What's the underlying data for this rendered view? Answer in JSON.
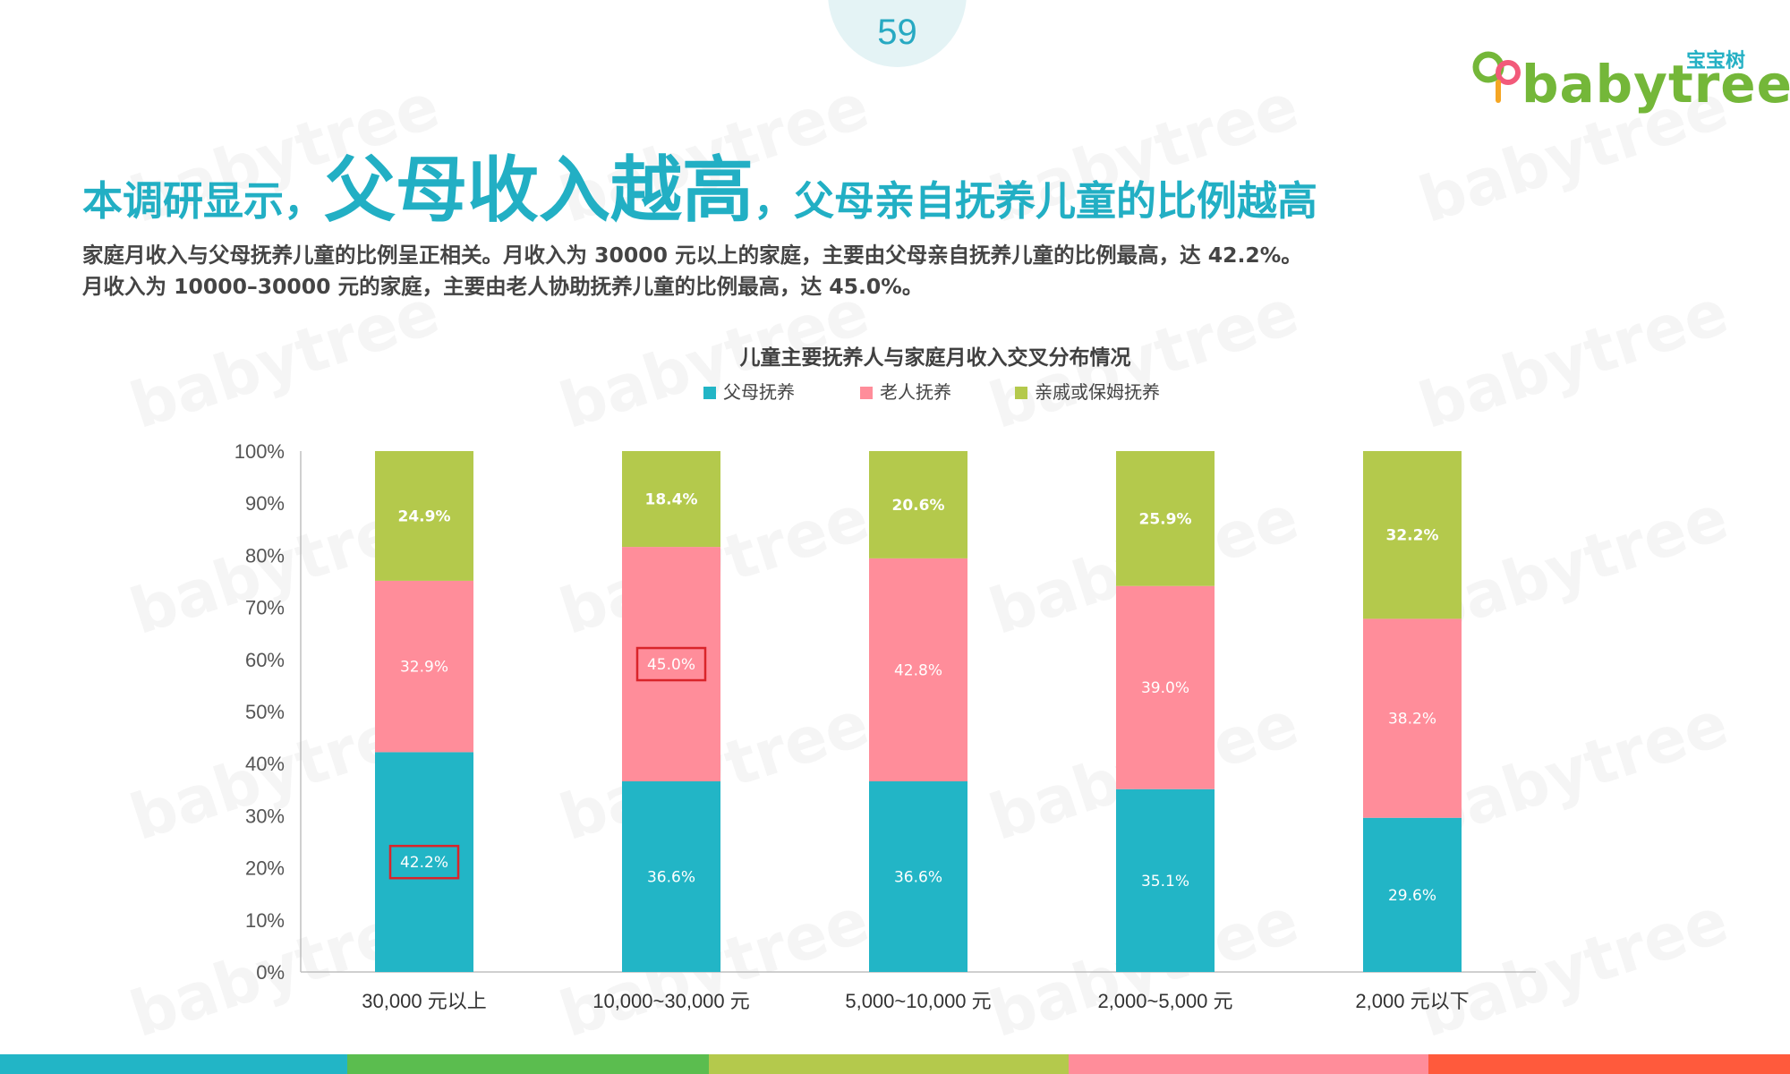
{
  "page": {
    "number": "59"
  },
  "logo": {
    "cn": "宝宝树",
    "en": "babytree"
  },
  "headline": {
    "part1": "本调研显示，",
    "part2": "父母收入越高",
    "part3": "，父母亲自抚养儿童的比例越高"
  },
  "description": "家庭月收入与父母抚养儿童的比例呈正相关。月收入为 30000 元以上的家庭，主要由父母亲自抚养儿童的比例最高，达 42.2%。月收入为 10000–30000 元的家庭，主要由老人协助抚养儿童的比例最高，达 45.0%。",
  "watermark_text": "babytree",
  "colors": {
    "teal": "#22b5c6",
    "pink": "#ff8d9a",
    "green": "#b4c94c",
    "highlight": "#d9242a",
    "title": "#22afc4"
  },
  "stripes": [
    "#22b5c6",
    "#5bbd4f",
    "#b4c94c",
    "#ff8d9a",
    "#ff5a3c"
  ],
  "chart_data": {
    "type": "bar",
    "stacked": true,
    "title": "儿童主要抚养人与家庭月收入交叉分布情况",
    "categories": [
      "30,000 元以上",
      "10,000~30,000 元",
      "5,000~10,000 元",
      "2,000~5,000 元",
      "2,000 元以下"
    ],
    "series": [
      {
        "name": "父母抚养",
        "color": "#22b5c6",
        "values": [
          42.2,
          36.6,
          36.6,
          35.1,
          29.6
        ],
        "labels": [
          "42.2%",
          "36.6%",
          "36.6%",
          "35.1%",
          "29.6%"
        ]
      },
      {
        "name": "老人抚养",
        "color": "#ff8d9a",
        "values": [
          32.9,
          45.0,
          42.8,
          39.0,
          38.2
        ],
        "labels": [
          "32.9%",
          "45.0%",
          "42.8%",
          "39.0%",
          "38.2%"
        ]
      },
      {
        "name": "亲戚或保姆抚养",
        "color": "#b4c94c",
        "values": [
          24.9,
          18.4,
          20.6,
          25.9,
          32.2
        ],
        "labels": [
          "24.9%",
          "18.4%",
          "20.6%",
          "25.9%",
          "32.2%"
        ]
      }
    ],
    "yticks": [
      "0%",
      "10%",
      "20%",
      "30%",
      "40%",
      "50%",
      "60%",
      "70%",
      "80%",
      "90%",
      "100%"
    ],
    "ylim": [
      0,
      100
    ],
    "legend_position": "top",
    "highlighted": [
      {
        "series": 0,
        "category": 0
      },
      {
        "series": 1,
        "category": 1
      }
    ]
  }
}
